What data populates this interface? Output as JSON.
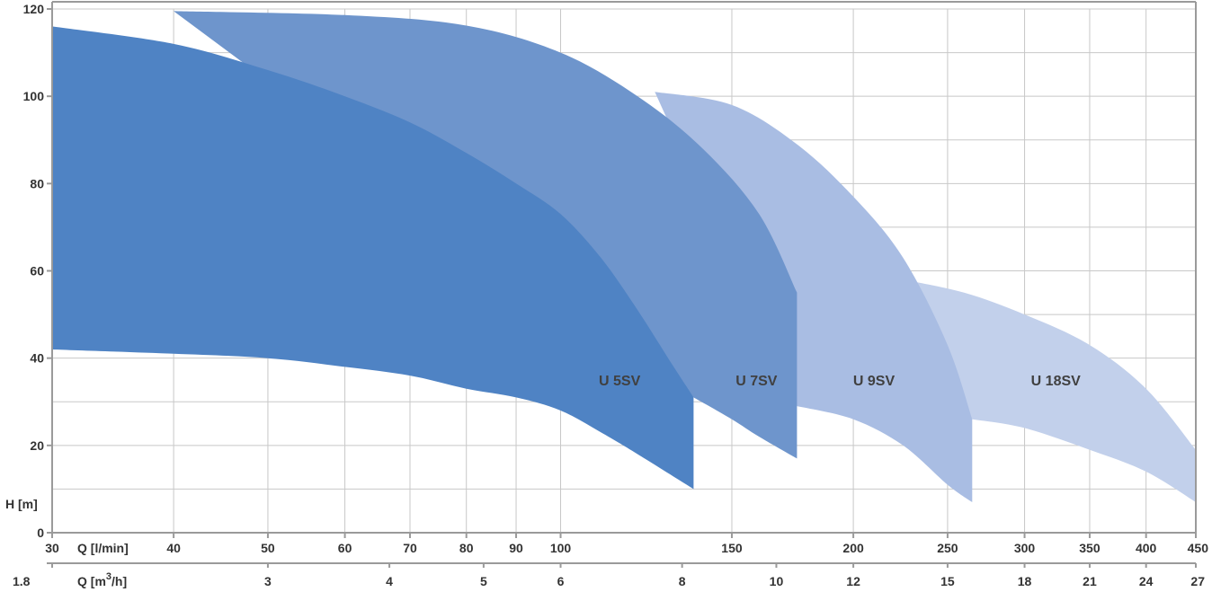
{
  "chart_data": {
    "type": "area",
    "x_scale": "log",
    "grid": true,
    "ylabel": "H [m]",
    "ylim": [
      0,
      120
    ],
    "y_ticks": [
      0,
      20,
      40,
      60,
      80,
      100,
      120
    ],
    "xlabel_primary": "Q [l/min]",
    "xlim_lmin": [
      30,
      450
    ],
    "x_ticks_lmin": [
      30,
      40,
      50,
      60,
      70,
      80,
      90,
      100,
      150,
      200,
      250,
      300,
      350,
      400,
      450
    ],
    "xlabel_secondary_main": "Q [m",
    "xlabel_secondary_sup": "3",
    "xlabel_secondary_tail": "/h]",
    "x_ticks_m3h": [
      "1.8",
      "3",
      "4",
      "5",
      "6",
      "8",
      "10",
      "12",
      "15",
      "18",
      "21",
      "24",
      "27"
    ],
    "series": [
      {
        "name": "U 5SV",
        "color": "#4f83c4",
        "upper": [
          [
            30,
            116
          ],
          [
            40,
            112
          ],
          [
            50,
            106
          ],
          [
            60,
            100
          ],
          [
            70,
            94
          ],
          [
            80,
            87
          ],
          [
            90,
            80
          ],
          [
            100,
            73
          ],
          [
            110,
            63
          ],
          [
            120,
            51
          ],
          [
            129,
            40
          ],
          [
            137,
            31
          ]
        ],
        "lower": [
          [
            30,
            42
          ],
          [
            40,
            41
          ],
          [
            50,
            40
          ],
          [
            60,
            38
          ],
          [
            70,
            36
          ],
          [
            80,
            33
          ],
          [
            90,
            31
          ],
          [
            100,
            28
          ],
          [
            110,
            23
          ],
          [
            120,
            18
          ],
          [
            137,
            10
          ]
        ]
      },
      {
        "name": "U 7SV",
        "color": "#6e95cc",
        "upper": [
          [
            40,
            119.5
          ],
          [
            60,
            118.6
          ],
          [
            80,
            116.2
          ],
          [
            100,
            110
          ],
          [
            120,
            100
          ],
          [
            140,
            88
          ],
          [
            160,
            73
          ],
          [
            175,
            55
          ]
        ],
        "lower": [
          [
            137,
            31
          ],
          [
            150,
            26
          ],
          [
            160,
            22
          ],
          [
            175,
            17
          ]
        ]
      },
      {
        "name": "U 9SV",
        "color": "#a9bde3",
        "upper": [
          [
            125,
            101
          ],
          [
            150,
            98
          ],
          [
            175,
            89
          ],
          [
            200,
            77
          ],
          [
            225,
            63
          ],
          [
            250,
            43
          ],
          [
            265,
            26
          ]
        ],
        "lower": [
          [
            175,
            29
          ],
          [
            200,
            26
          ],
          [
            225,
            20
          ],
          [
            250,
            11
          ],
          [
            265,
            7
          ]
        ]
      },
      {
        "name": "U 18SV",
        "color": "#c2d0eb",
        "upper": [
          [
            225,
            58
          ],
          [
            260,
            55
          ],
          [
            300,
            50
          ],
          [
            350,
            43
          ],
          [
            400,
            33
          ],
          [
            450,
            19
          ]
        ],
        "lower": [
          [
            265,
            26
          ],
          [
            300,
            24
          ],
          [
            350,
            19
          ],
          [
            400,
            14
          ],
          [
            450,
            7
          ]
        ]
      }
    ],
    "labels": [
      {
        "text": "U 5SV",
        "at": [
          115,
          35
        ],
        "color": "#404040"
      },
      {
        "text": "U 7SV",
        "at": [
          159,
          35
        ],
        "color": "#404040"
      },
      {
        "text": "U 9SV",
        "at": [
          210,
          35
        ],
        "color": "#404040"
      },
      {
        "text": "U 18SV",
        "at": [
          323,
          35
        ],
        "color": "#404040"
      }
    ]
  }
}
